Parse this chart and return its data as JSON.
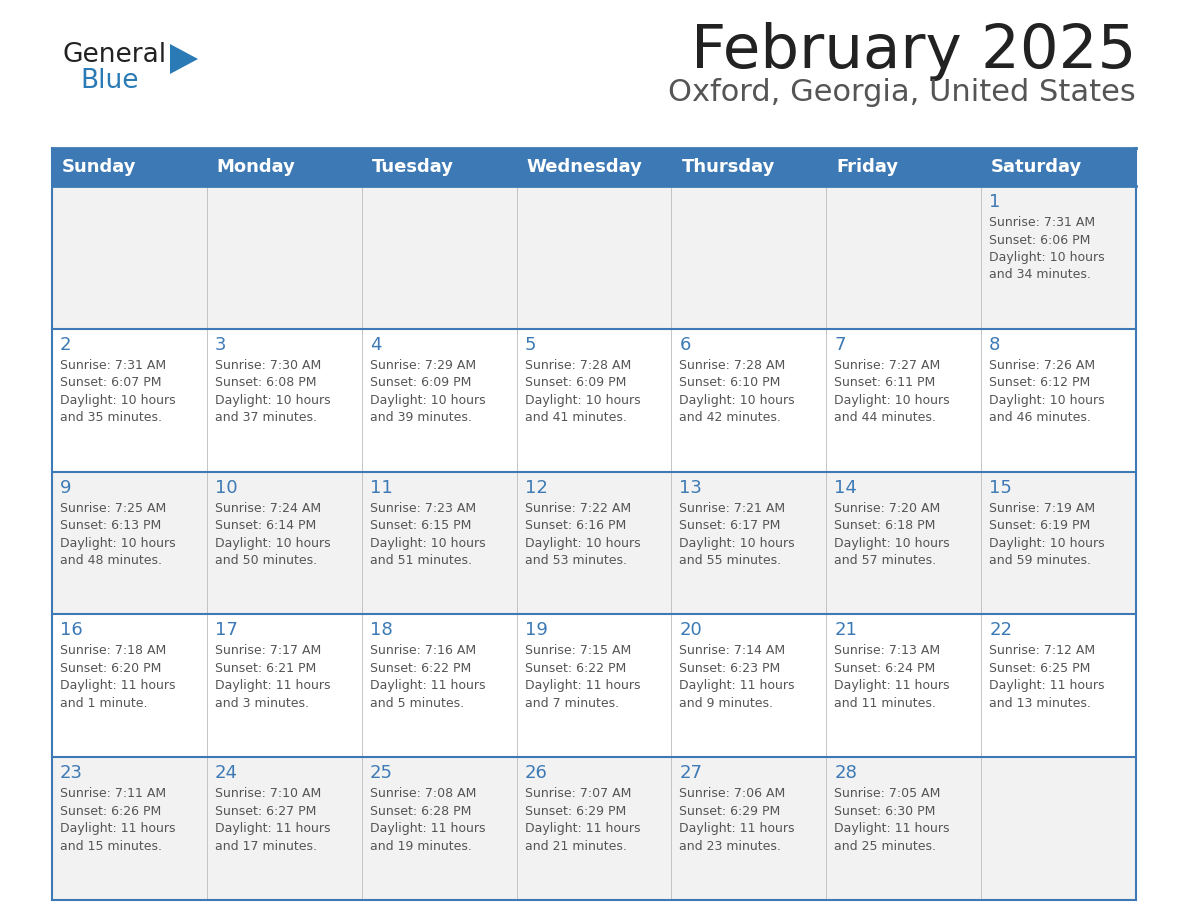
{
  "title": "February 2025",
  "subtitle": "Oxford, Georgia, United States",
  "days_of_week": [
    "Sunday",
    "Monday",
    "Tuesday",
    "Wednesday",
    "Thursday",
    "Friday",
    "Saturday"
  ],
  "header_bg": "#3d7ab5",
  "header_text": "#ffffff",
  "row_bg_week1": "#f2f2f2",
  "row_bg_week2": "#ffffff",
  "row_bg_week3": "#f2f2f2",
  "row_bg_week4": "#ffffff",
  "row_bg_week5": "#f2f2f2",
  "text_color": "#555555",
  "day_num_color": "#3d7ab5",
  "border_color": "#3d7ab5",
  "title_color": "#222222",
  "subtitle_color": "#555555",
  "logo_text_color": "#222222",
  "logo_blue_color": "#2a7ab5",
  "calendar_data": [
    [
      null,
      null,
      null,
      null,
      null,
      null,
      1
    ],
    [
      2,
      3,
      4,
      5,
      6,
      7,
      8
    ],
    [
      9,
      10,
      11,
      12,
      13,
      14,
      15
    ],
    [
      16,
      17,
      18,
      19,
      20,
      21,
      22
    ],
    [
      23,
      24,
      25,
      26,
      27,
      28,
      null
    ]
  ],
  "sunrise_data": {
    "1": "Sunrise: 7:31 AM\nSunset: 6:06 PM\nDaylight: 10 hours\nand 34 minutes.",
    "2": "Sunrise: 7:31 AM\nSunset: 6:07 PM\nDaylight: 10 hours\nand 35 minutes.",
    "3": "Sunrise: 7:30 AM\nSunset: 6:08 PM\nDaylight: 10 hours\nand 37 minutes.",
    "4": "Sunrise: 7:29 AM\nSunset: 6:09 PM\nDaylight: 10 hours\nand 39 minutes.",
    "5": "Sunrise: 7:28 AM\nSunset: 6:09 PM\nDaylight: 10 hours\nand 41 minutes.",
    "6": "Sunrise: 7:28 AM\nSunset: 6:10 PM\nDaylight: 10 hours\nand 42 minutes.",
    "7": "Sunrise: 7:27 AM\nSunset: 6:11 PM\nDaylight: 10 hours\nand 44 minutes.",
    "8": "Sunrise: 7:26 AM\nSunset: 6:12 PM\nDaylight: 10 hours\nand 46 minutes.",
    "9": "Sunrise: 7:25 AM\nSunset: 6:13 PM\nDaylight: 10 hours\nand 48 minutes.",
    "10": "Sunrise: 7:24 AM\nSunset: 6:14 PM\nDaylight: 10 hours\nand 50 minutes.",
    "11": "Sunrise: 7:23 AM\nSunset: 6:15 PM\nDaylight: 10 hours\nand 51 minutes.",
    "12": "Sunrise: 7:22 AM\nSunset: 6:16 PM\nDaylight: 10 hours\nand 53 minutes.",
    "13": "Sunrise: 7:21 AM\nSunset: 6:17 PM\nDaylight: 10 hours\nand 55 minutes.",
    "14": "Sunrise: 7:20 AM\nSunset: 6:18 PM\nDaylight: 10 hours\nand 57 minutes.",
    "15": "Sunrise: 7:19 AM\nSunset: 6:19 PM\nDaylight: 10 hours\nand 59 minutes.",
    "16": "Sunrise: 7:18 AM\nSunset: 6:20 PM\nDaylight: 11 hours\nand 1 minute.",
    "17": "Sunrise: 7:17 AM\nSunset: 6:21 PM\nDaylight: 11 hours\nand 3 minutes.",
    "18": "Sunrise: 7:16 AM\nSunset: 6:22 PM\nDaylight: 11 hours\nand 5 minutes.",
    "19": "Sunrise: 7:15 AM\nSunset: 6:22 PM\nDaylight: 11 hours\nand 7 minutes.",
    "20": "Sunrise: 7:14 AM\nSunset: 6:23 PM\nDaylight: 11 hours\nand 9 minutes.",
    "21": "Sunrise: 7:13 AM\nSunset: 6:24 PM\nDaylight: 11 hours\nand 11 minutes.",
    "22": "Sunrise: 7:12 AM\nSunset: 6:25 PM\nDaylight: 11 hours\nand 13 minutes.",
    "23": "Sunrise: 7:11 AM\nSunset: 6:26 PM\nDaylight: 11 hours\nand 15 minutes.",
    "24": "Sunrise: 7:10 AM\nSunset: 6:27 PM\nDaylight: 11 hours\nand 17 minutes.",
    "25": "Sunrise: 7:08 AM\nSunset: 6:28 PM\nDaylight: 11 hours\nand 19 minutes.",
    "26": "Sunrise: 7:07 AM\nSunset: 6:29 PM\nDaylight: 11 hours\nand 21 minutes.",
    "27": "Sunrise: 7:06 AM\nSunset: 6:29 PM\nDaylight: 11 hours\nand 23 minutes.",
    "28": "Sunrise: 7:05 AM\nSunset: 6:30 PM\nDaylight: 11 hours\nand 25 minutes."
  }
}
